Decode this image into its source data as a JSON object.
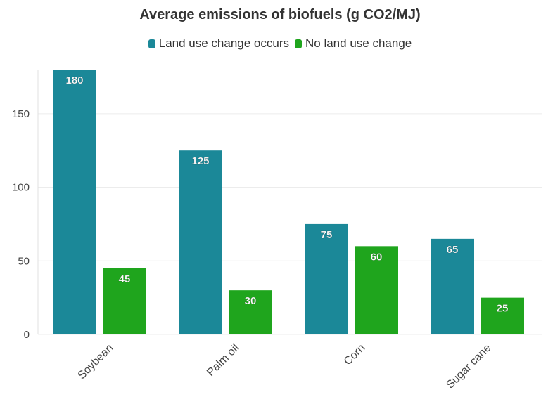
{
  "chart_data": {
    "type": "bar",
    "title": "Average emissions of biofuels (g CO2/MJ)",
    "xlabel": "",
    "ylabel": "",
    "categories": [
      "Soybean",
      "Palm oil",
      "Corn",
      "Sugar cane"
    ],
    "series": [
      {
        "name": "Land use change occurs",
        "values": [
          180,
          125,
          75,
          65
        ],
        "color": "#1b8898"
      },
      {
        "name": "No land use change",
        "values": [
          45,
          30,
          60,
          25
        ],
        "color": "#1fa51d"
      }
    ],
    "ylim": [
      0,
      180
    ],
    "yticks": [
      0,
      50,
      100,
      150
    ],
    "grid": true,
    "legend_position": "top-center",
    "data_labels": true
  }
}
